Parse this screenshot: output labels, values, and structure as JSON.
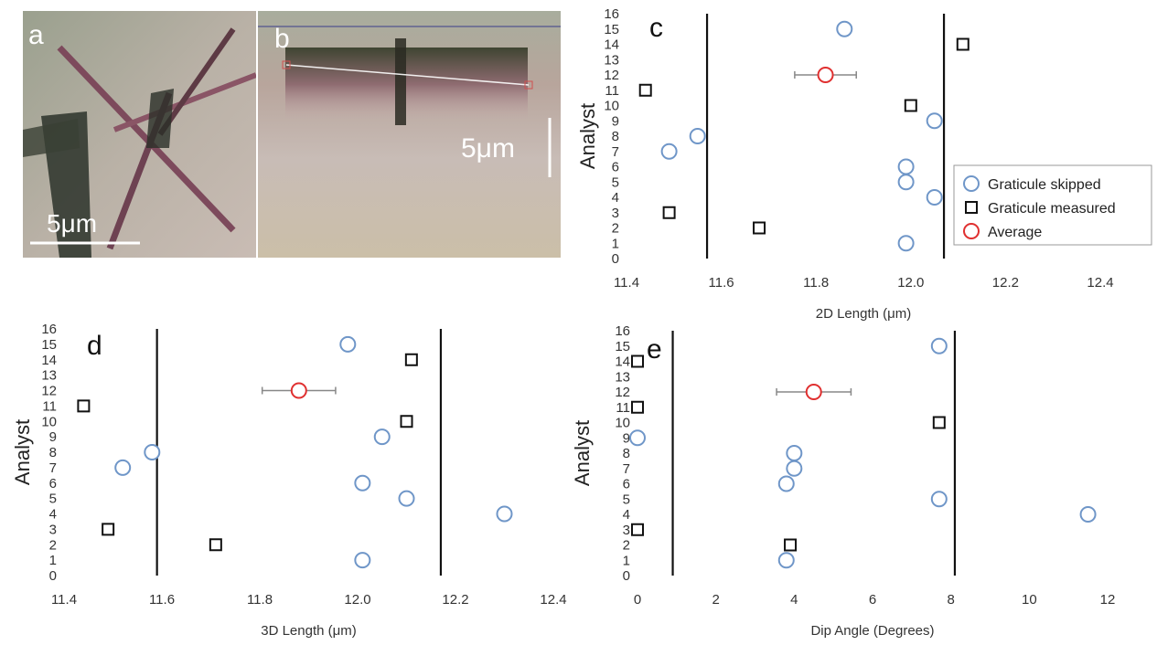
{
  "figure": {
    "panels": [
      {
        "id": "a",
        "label": "a",
        "scale_bar": "5μm"
      },
      {
        "id": "b",
        "label": "b",
        "scale_bar": "5μm"
      }
    ]
  },
  "legend": {
    "position": "right inside panel c",
    "items": [
      {
        "label": "Graticule skipped",
        "marker": "circle",
        "color": "#6f96c8"
      },
      {
        "label": "Graticule measured",
        "marker": "square",
        "color": "#111111"
      },
      {
        "label": "Average",
        "marker": "circle",
        "color": "#e03030"
      }
    ]
  },
  "chart_data": [
    {
      "panel": "c",
      "type": "scatter",
      "xlabel": "2D Length (μm)",
      "ylabel": "Analyst",
      "xlim": [
        11.4,
        12.4
      ],
      "ylim": [
        0,
        16
      ],
      "xticks": [
        "11.4",
        "11.6",
        "11.8",
        "12.0",
        "12.2",
        "12.4"
      ],
      "yticks": [
        "0",
        "1",
        "2",
        "3",
        "4",
        "5",
        "6",
        "7",
        "8",
        "9",
        "10",
        "11",
        "12",
        "13",
        "14",
        "15",
        "16"
      ],
      "grid": false,
      "vlines": [
        11.57,
        12.07
      ],
      "series": [
        {
          "name": "Graticule skipped",
          "points": [
            [
              11.99,
              1
            ],
            [
              12.05,
              4
            ],
            [
              11.99,
              5
            ],
            [
              11.99,
              6
            ],
            [
              11.49,
              7
            ],
            [
              11.55,
              8
            ],
            [
              12.05,
              9
            ],
            [
              11.86,
              15
            ]
          ]
        },
        {
          "name": "Graticule measured",
          "points": [
            [
              11.68,
              2
            ],
            [
              11.49,
              3
            ],
            [
              12.0,
              10
            ],
            [
              11.44,
              11
            ],
            [
              12.11,
              14
            ]
          ]
        },
        {
          "name": "Average",
          "points": [
            [
              11.82,
              12
            ]
          ],
          "xerr": 0.065
        }
      ]
    },
    {
      "panel": "d",
      "type": "scatter",
      "xlabel": "3D Length (μm)",
      "ylabel": "Analyst",
      "xlim": [
        11.4,
        12.4
      ],
      "ylim": [
        0,
        16
      ],
      "xticks": [
        "11.4",
        "11.6",
        "11.8",
        "12.0",
        "12.2",
        "12.4"
      ],
      "yticks": [
        "0",
        "1",
        "2",
        "3",
        "4",
        "5",
        "6",
        "7",
        "8",
        "9",
        "10",
        "11",
        "12",
        "13",
        "14",
        "15",
        "16"
      ],
      "grid": false,
      "vlines": [
        11.59,
        12.17
      ],
      "series": [
        {
          "name": "Graticule skipped",
          "points": [
            [
              12.01,
              1
            ],
            [
              12.3,
              4
            ],
            [
              12.1,
              5
            ],
            [
              12.01,
              6
            ],
            [
              11.52,
              7
            ],
            [
              11.58,
              8
            ],
            [
              12.05,
              9
            ],
            [
              11.98,
              15
            ]
          ]
        },
        {
          "name": "Graticule measured",
          "points": [
            [
              11.71,
              2
            ],
            [
              11.49,
              3
            ],
            [
              12.1,
              10
            ],
            [
              11.44,
              11
            ],
            [
              12.11,
              14
            ]
          ]
        },
        {
          "name": "Average",
          "points": [
            [
              11.88,
              12
            ]
          ],
          "xerr": 0.075
        }
      ]
    },
    {
      "panel": "e",
      "type": "scatter",
      "xlabel": "Dip Angle (Degrees)",
      "ylabel": "Analyst",
      "xlim": [
        0,
        12
      ],
      "ylim": [
        0,
        16
      ],
      "xticks": [
        "0",
        "2",
        "4",
        "6",
        "8",
        "10",
        "12"
      ],
      "yticks": [
        "0",
        "1",
        "2",
        "3",
        "4",
        "5",
        "6",
        "7",
        "8",
        "9",
        "10",
        "11",
        "12",
        "13",
        "14",
        "15",
        "16"
      ],
      "grid": false,
      "vlines": [
        0.9,
        8.1
      ],
      "series": [
        {
          "name": "Graticule skipped",
          "points": [
            [
              3.8,
              1
            ],
            [
              11.5,
              4
            ],
            [
              7.7,
              5
            ],
            [
              3.8,
              6
            ],
            [
              4.0,
              7
            ],
            [
              4.0,
              8
            ],
            [
              0.0,
              9
            ],
            [
              7.7,
              15
            ]
          ]
        },
        {
          "name": "Graticule measured",
          "points": [
            [
              3.9,
              2
            ],
            [
              0.0,
              3
            ],
            [
              7.7,
              10
            ],
            [
              0.0,
              11
            ],
            [
              0.0,
              14
            ]
          ]
        },
        {
          "name": "Average",
          "points": [
            [
              4.5,
              12
            ]
          ],
          "xerr": 0.95
        }
      ]
    }
  ]
}
